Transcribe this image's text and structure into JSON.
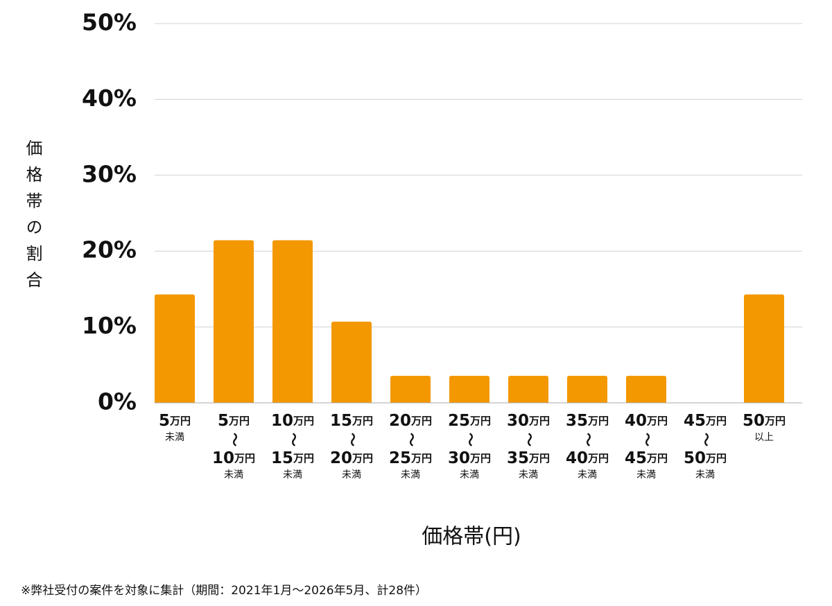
{
  "chart_data": {
    "type": "bar",
    "y_label": "価格帯の割合",
    "x_label": "価格帯(円)",
    "note": "※弊社受付の案件を対象に集計（期間：2021年1月～2026年5月、計28件）",
    "categories": [
      [
        "5万円",
        "未満"
      ],
      [
        "5万円",
        "～",
        "10万円",
        "未満"
      ],
      [
        "10万円",
        "～",
        "15万円",
        "未満"
      ],
      [
        "15万円",
        "～",
        "20万円",
        "未満"
      ],
      [
        "20万円",
        "～",
        "25万円",
        "未満"
      ],
      [
        "25万円",
        "～",
        "30万円",
        "未満"
      ],
      [
        "30万円",
        "～",
        "35万円",
        "未満"
      ],
      [
        "35万円",
        "～",
        "40万円",
        "未満"
      ],
      [
        "40万円",
        "～",
        "45万円",
        "未満"
      ],
      [
        "45万円",
        "～",
        "50万円",
        "未満"
      ],
      [
        "50万円",
        "以上"
      ]
    ],
    "values": [
      14.29,
      21.43,
      21.43,
      10.71,
      3.57,
      3.57,
      3.57,
      3.57,
      3.57,
      0,
      14.29
    ],
    "color": "#f39800",
    "ylim": [
      0,
      50
    ],
    "yticks": [
      {
        "value": 0,
        "label": "0%"
      },
      {
        "value": 10,
        "label": "10%"
      },
      {
        "value": 20,
        "label": "20%"
      },
      {
        "value": 30,
        "label": "30%"
      },
      {
        "value": 40,
        "label": "40%"
      },
      {
        "value": 50,
        "label": "50%"
      }
    ],
    "grid": true
  }
}
